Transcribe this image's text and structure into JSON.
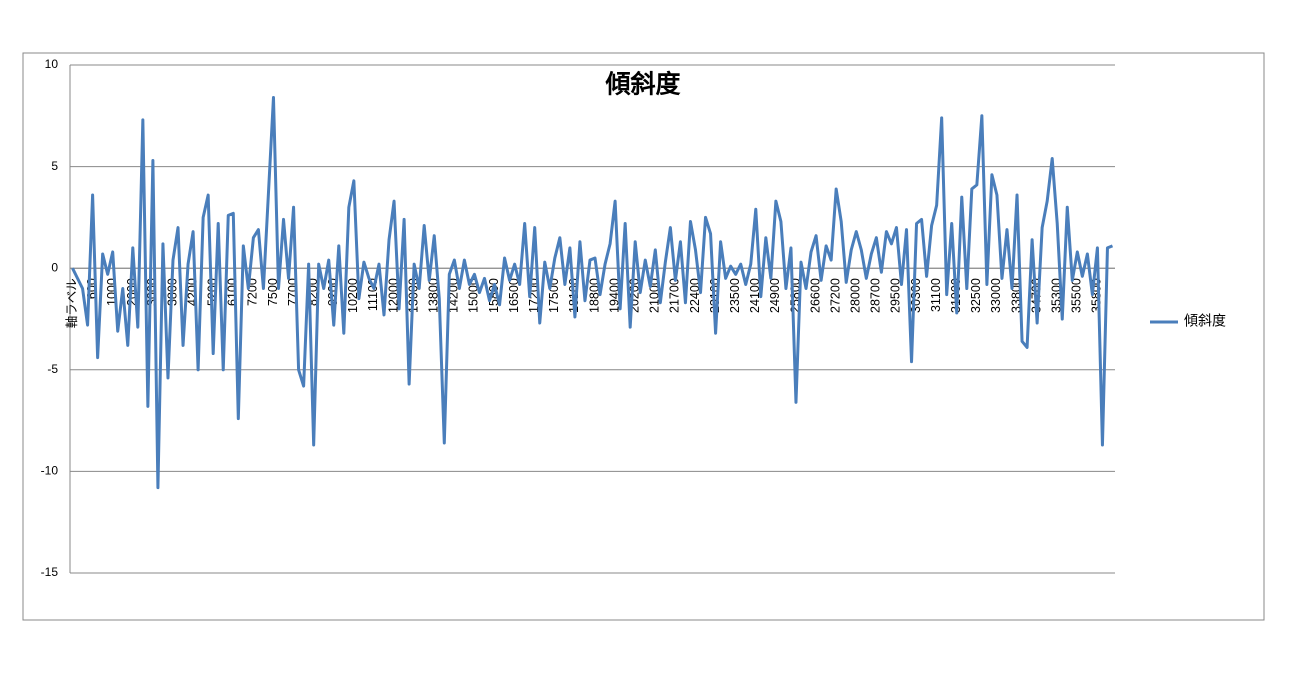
{
  "chart_data": {
    "type": "line",
    "title": "傾斜度",
    "categories": [
      "軸ラベル",
      null,
      null,
      null,
      "600",
      null,
      null,
      null,
      "1000",
      null,
      null,
      null,
      "2000",
      null,
      null,
      null,
      "3000",
      null,
      null,
      null,
      "3800",
      null,
      null,
      null,
      "4200",
      null,
      null,
      null,
      "5200",
      null,
      null,
      null,
      "6100",
      null,
      null,
      null,
      "7200",
      null,
      null,
      null,
      "7500",
      null,
      null,
      null,
      "7700",
      null,
      null,
      null,
      "8200",
      null,
      null,
      null,
      "9200",
      null,
      null,
      null,
      "10200",
      null,
      null,
      null,
      "11100",
      null,
      null,
      null,
      "12000",
      null,
      null,
      null,
      "13000",
      null,
      null,
      null,
      "13800",
      null,
      null,
      null,
      "14200",
      null,
      null,
      null,
      "15000",
      null,
      null,
      null,
      "15800",
      null,
      null,
      null,
      "16500",
      null,
      null,
      null,
      "17200",
      null,
      null,
      null,
      "17500",
      null,
      null,
      null,
      "18100",
      null,
      null,
      null,
      "18800",
      null,
      null,
      null,
      "19400",
      null,
      null,
      null,
      "20200",
      null,
      null,
      null,
      "21000",
      null,
      null,
      null,
      "21700",
      null,
      null,
      null,
      "22400",
      null,
      null,
      null,
      "23100",
      null,
      null,
      null,
      "23500",
      null,
      null,
      null,
      "24100",
      null,
      null,
      null,
      "24900",
      null,
      null,
      null,
      "25800",
      null,
      null,
      null,
      "26600",
      null,
      null,
      null,
      "27200",
      null,
      null,
      null,
      "28000",
      null,
      null,
      null,
      "28700",
      null,
      null,
      null,
      "29500",
      null,
      null,
      null,
      "30300",
      null,
      null,
      null,
      "31100",
      null,
      null,
      null,
      "31900",
      null,
      null,
      null,
      "32500",
      null,
      null,
      null,
      "33000",
      null,
      null,
      null,
      "33800",
      null,
      null,
      null,
      "34700",
      null,
      null,
      null,
      "35300",
      null,
      null,
      null,
      "35500",
      null,
      null,
      null,
      "35800",
      null,
      null,
      null
    ],
    "series": [
      {
        "name": "傾斜度",
        "color": "#4a7ebb",
        "values": [
          0,
          -0.5,
          -1,
          -2.8,
          3.6,
          -4.4,
          0.7,
          -0.3,
          0.8,
          -3.1,
          -1,
          -3.8,
          1,
          -2.9,
          7.3,
          -6.8,
          5.3,
          -10.8,
          1.2,
          -5.4,
          0.4,
          2,
          -3.8,
          0.2,
          1.8,
          -5,
          2.5,
          3.6,
          -4.2,
          2.2,
          -5,
          2.6,
          2.7,
          -7.4,
          1.1,
          -1,
          1.5,
          1.9,
          -1,
          3.7,
          8.4,
          -1,
          2.4,
          -0.5,
          3,
          -5,
          -5.8,
          0.2,
          -8.7,
          0.2,
          -1,
          0.4,
          -2.8,
          1.1,
          -3.2,
          3,
          4.3,
          -1.5,
          0.3,
          -0.5,
          -1,
          0.2,
          -2.3,
          1.4,
          3.3,
          -2,
          2.4,
          -5.7,
          0.2,
          -1,
          2.1,
          -0.6,
          1.6,
          -1.5,
          -8.6,
          -0.3,
          0.4,
          -1,
          0.4,
          -0.8,
          -0.3,
          -1.2,
          -0.5,
          -1.6,
          -0.8,
          -1.8,
          0.5,
          -0.6,
          0.2,
          -0.8,
          2.2,
          -1.4,
          2,
          -2.7,
          0.3,
          -1,
          0.5,
          1.5,
          -0.8,
          1,
          -2.4,
          1.3,
          -1.6,
          0.4,
          0.5,
          -1.3,
          0.2,
          1.2,
          3.3,
          -2,
          2.2,
          -2.9,
          1.3,
          -1.2,
          0.4,
          -0.9,
          0.9,
          -1.7,
          0.3,
          2,
          -0.6,
          1.3,
          -1.7,
          2.3,
          0.9,
          -1.2,
          2.5,
          1.7,
          -3.2,
          1.3,
          -0.5,
          0.1,
          -0.3,
          0.2,
          -0.8,
          0.2,
          2.9,
          -1.4,
          1.5,
          -0.5,
          3.3,
          2.3,
          -1,
          1,
          -6.6,
          0.3,
          -1,
          0.8,
          1.6,
          -0.6,
          1.1,
          0.4,
          3.9,
          2.3,
          -0.7,
          0.9,
          1.8,
          0.9,
          -0.5,
          0.7,
          1.5,
          -0.2,
          1.8,
          1.2,
          2,
          -0.8,
          1.9,
          -4.6,
          2.2,
          2.4,
          -0.4,
          2.1,
          3.1,
          7.4,
          -1.3,
          2.2,
          -2.2,
          3.5,
          -1,
          3.9,
          4.1,
          7.5,
          -0.8,
          4.6,
          3.6,
          -0.5,
          1.9,
          -1,
          3.6,
          -3.6,
          -3.9,
          1.4,
          -2.7,
          2,
          3.3,
          5.4,
          2.2,
          -2.5,
          3,
          -0.6,
          0.8,
          -0.4,
          0.7,
          -1.3,
          1,
          -8.7,
          1,
          1.1
        ]
      }
    ],
    "ylim": [
      -15,
      10
    ],
    "yticks": [
      10,
      5,
      0,
      -5,
      -10,
      -15
    ],
    "grid": true,
    "legend": "right"
  }
}
